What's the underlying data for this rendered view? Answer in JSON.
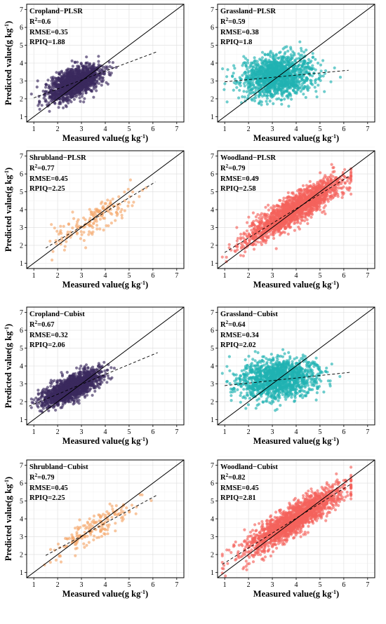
{
  "chart_data": [
    {
      "type": "scatter",
      "title": "Cropland−PLSR",
      "r2_label": "R",
      "r2_sup": "2",
      "r2_value": "=0.6",
      "rmse": "RMSE=0.35",
      "rpiq": "RPIQ=1.88",
      "xlabel": "Measured value(g kg",
      "ylabel": "Predicted value(g kg",
      "unit_sup": "-1",
      "unit_close": ")",
      "xlim": [
        0.7,
        7.3
      ],
      "ylim": [
        0.7,
        7.3
      ],
      "xticks": [
        "1",
        "2",
        "3",
        "4",
        "5",
        "6",
        "7"
      ],
      "yticks": [
        "1",
        "2",
        "3",
        "4",
        "5",
        "6",
        "7"
      ],
      "color": "#3b2a5e",
      "n_points": 1500,
      "x_center": 2.7,
      "x_spread": 0.55,
      "slope": 0.5,
      "intercept": 1.55,
      "noise": 0.38,
      "fit_line": [
        [
          1.0,
          2.05
        ],
        [
          6.2,
          4.65
        ]
      ],
      "grid": true
    },
    {
      "type": "scatter",
      "title": "Grassland−PLSR",
      "r2_label": "R",
      "r2_sup": "2",
      "r2_value": "=0.59",
      "rmse": "RMSE=0.38",
      "rpiq": "RPIQ=1.8",
      "xlabel": "Measured value(g kg",
      "ylabel": "",
      "unit_sup": "-1",
      "unit_close": ")",
      "xlim": [
        0.7,
        7.3
      ],
      "ylim": [
        0.7,
        7.3
      ],
      "xticks": [
        "1",
        "2",
        "3",
        "4",
        "5",
        "6",
        "7"
      ],
      "yticks": [
        "1",
        "2",
        "3",
        "4",
        "5",
        "6",
        "7"
      ],
      "color": "#21b2b2",
      "n_points": 1400,
      "x_center": 3.2,
      "x_spread": 0.75,
      "slope": 0.1,
      "intercept": 2.95,
      "noise": 0.55,
      "fit_line": [
        [
          1.0,
          2.95
        ],
        [
          6.2,
          3.6
        ]
      ],
      "grid": true
    },
    {
      "type": "scatter",
      "title": "Shrubland−PLSR",
      "r2_label": "R",
      "r2_sup": "2",
      "r2_value": "=0.77",
      "rmse": "RMSE=0.45",
      "rpiq": "RPIQ=2.25",
      "xlabel": "Measured value(g kg",
      "ylabel": "Predicted value(g kg",
      "unit_sup": "-1",
      "unit_close": ")",
      "xlim": [
        0.7,
        7.3
      ],
      "ylim": [
        0.7,
        7.3
      ],
      "xticks": [
        "1",
        "2",
        "3",
        "4",
        "5",
        "6",
        "7"
      ],
      "yticks": [
        "1",
        "2",
        "3",
        "4",
        "5",
        "6",
        "7"
      ],
      "color": "#f5a86c",
      "n_points": 170,
      "x_center": 3.4,
      "x_spread": 0.8,
      "slope": 0.75,
      "intercept": 0.8,
      "noise": 0.4,
      "fit_line": [
        [
          1.5,
          1.85
        ],
        [
          6.1,
          5.55
        ]
      ],
      "grid": true
    },
    {
      "type": "scatter",
      "title": "Woodland−PLSR",
      "r2_label": "R",
      "r2_sup": "2",
      "r2_value": "=0.79",
      "rmse": "RMSE=0.49",
      "rpiq": "RPIQ=2.58",
      "xlabel": "Measured value(g kg",
      "ylabel": "",
      "unit_sup": "-1",
      "unit_close": ")",
      "xlim": [
        0.7,
        7.3
      ],
      "ylim": [
        0.7,
        7.3
      ],
      "xticks": [
        "1",
        "2",
        "3",
        "4",
        "5",
        "6",
        "7"
      ],
      "yticks": [
        "1",
        "2",
        "3",
        "4",
        "5",
        "6",
        "7"
      ],
      "color": "#f4625c",
      "n_points": 1800,
      "x_center": 3.9,
      "x_spread": 1.0,
      "slope": 0.8,
      "intercept": 0.85,
      "noise": 0.42,
      "fit_line": [
        [
          1.0,
          1.6
        ],
        [
          6.2,
          5.85
        ]
      ],
      "grid": true
    },
    {
      "type": "scatter",
      "title": "Cropland−Cubist",
      "r2_label": "R",
      "r2_sup": "2",
      "r2_value": "=0.67",
      "rmse": "RMSE=0.32",
      "rpiq": "RPIQ=2.06",
      "xlabel": "Measured value(g kg",
      "ylabel": "Predicted value(g kg",
      "unit_sup": "-1",
      "unit_close": ")",
      "xlim": [
        0.7,
        7.3
      ],
      "ylim": [
        0.7,
        7.3
      ],
      "xticks": [
        "1",
        "2",
        "3",
        "4",
        "5",
        "6",
        "7"
      ],
      "yticks": [
        "1",
        "2",
        "3",
        "4",
        "5",
        "6",
        "7"
      ],
      "color": "#3b2a5e",
      "n_points": 1500,
      "x_center": 2.6,
      "x_spread": 0.6,
      "slope": 0.55,
      "intercept": 1.35,
      "noise": 0.33,
      "fit_line": [
        [
          0.8,
          1.75
        ],
        [
          6.2,
          4.75
        ]
      ],
      "grid": true
    },
    {
      "type": "scatter",
      "title": "Grassland−Cubist",
      "r2_label": "R",
      "r2_sup": "2",
      "r2_value": "=0.64",
      "rmse": "RMSE=0.34",
      "rpiq": "RPIQ=2.02",
      "xlabel": "Measured value(g kg",
      "ylabel": "",
      "unit_sup": "-1",
      "unit_close": ")",
      "xlim": [
        0.7,
        7.3
      ],
      "ylim": [
        0.7,
        7.3
      ],
      "xticks": [
        "1",
        "2",
        "3",
        "4",
        "5",
        "6",
        "7"
      ],
      "yticks": [
        "1",
        "2",
        "3",
        "4",
        "5",
        "6",
        "7"
      ],
      "color": "#21b2b2",
      "n_points": 1400,
      "x_center": 3.2,
      "x_spread": 0.8,
      "slope": 0.12,
      "intercept": 2.9,
      "noise": 0.55,
      "fit_line": [
        [
          1.0,
          2.9
        ],
        [
          6.3,
          3.65
        ]
      ],
      "grid": true
    },
    {
      "type": "scatter",
      "title": "Shrubland−Cubist",
      "r2_label": "R",
      "r2_sup": "2",
      "r2_value": "=0.79",
      "rmse": "RMSE=0.45",
      "rpiq": "RPIQ=2.25",
      "xlabel": "Measured value(g kg",
      "ylabel": "Predicted value(g kg",
      "unit_sup": "-1",
      "unit_close": ")",
      "xlim": [
        0.7,
        7.3
      ],
      "ylim": [
        0.7,
        7.3
      ],
      "xticks": [
        "1",
        "2",
        "3",
        "4",
        "5",
        "6",
        "7"
      ],
      "yticks": [
        "1",
        "2",
        "3",
        "4",
        "5",
        "6",
        "7"
      ],
      "color": "#f5a86c",
      "n_points": 170,
      "x_center": 3.5,
      "x_spread": 0.85,
      "slope": 0.75,
      "intercept": 0.85,
      "noise": 0.38,
      "fit_line": [
        [
          1.5,
          1.95
        ],
        [
          6.2,
          5.35
        ]
      ],
      "grid": true
    },
    {
      "type": "scatter",
      "title": "Woodland−Cubist",
      "r2_label": "R",
      "r2_sup": "2",
      "r2_value": "=0.82",
      "rmse": "RMSE=0.45",
      "rpiq": "RPIQ=2.81",
      "xlabel": "Measured value(g kg",
      "ylabel": "",
      "unit_sup": "-1",
      "unit_close": ")",
      "xlim": [
        0.7,
        7.3
      ],
      "ylim": [
        0.7,
        7.3
      ],
      "xticks": [
        "1",
        "2",
        "3",
        "4",
        "5",
        "6",
        "7"
      ],
      "yticks": [
        "1",
        "2",
        "3",
        "4",
        "5",
        "6",
        "7"
      ],
      "color": "#f4625c",
      "n_points": 1800,
      "x_center": 3.9,
      "x_spread": 1.0,
      "slope": 0.82,
      "intercept": 0.75,
      "noise": 0.4,
      "fit_line": [
        [
          0.9,
          1.45
        ],
        [
          6.3,
          5.95
        ]
      ],
      "grid": true
    }
  ]
}
